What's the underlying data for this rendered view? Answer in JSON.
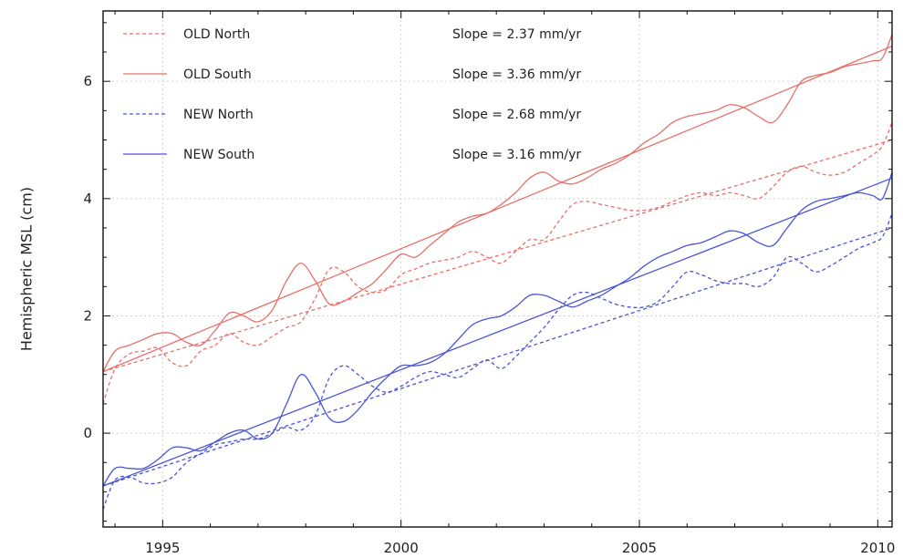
{
  "chart_data": {
    "type": "line",
    "title": "",
    "xlabel": "",
    "ylabel": "Hemispheric MSL (cm)",
    "xlim": [
      1993.75,
      2010.3
    ],
    "ylim": [
      -1.6,
      7.2
    ],
    "xticks": [
      1995,
      2000,
      2005,
      2010
    ],
    "yticks": [
      0,
      2,
      4,
      6
    ],
    "grid": true,
    "legend_position": "top-left",
    "series": [
      {
        "name": "OLD North",
        "color": "#e8706a",
        "dash": true,
        "slope_label": "Slope = 2.37 mm/yr",
        "trend": [
          [
            1993.75,
            1.05
          ],
          [
            2010.3,
            5.0
          ]
        ],
        "x": [
          1993.75,
          1994.0,
          1994.3,
          1994.6,
          1994.9,
          1995.2,
          1995.5,
          1995.8,
          1996.1,
          1996.4,
          1996.7,
          1997.0,
          1997.3,
          1997.6,
          1997.9,
          1998.2,
          1998.5,
          1998.8,
          1999.1,
          1999.4,
          1999.7,
          2000.0,
          2000.3,
          2000.6,
          2000.9,
          2001.2,
          2001.5,
          2001.8,
          2002.1,
          2002.4,
          2002.7,
          2003.0,
          2003.3,
          2003.6,
          2003.9,
          2004.2,
          2004.5,
          2004.8,
          2005.1,
          2005.4,
          2005.7,
          2006.0,
          2006.3,
          2006.6,
          2006.9,
          2007.2,
          2007.5,
          2007.8,
          2008.1,
          2008.4,
          2008.7,
          2009.0,
          2009.3,
          2009.6,
          2009.9,
          2010.1,
          2010.3
        ],
        "values": [
          0.5,
          1.1,
          1.35,
          1.4,
          1.45,
          1.2,
          1.15,
          1.4,
          1.5,
          1.7,
          1.55,
          1.5,
          1.65,
          1.8,
          1.9,
          2.3,
          2.8,
          2.75,
          2.5,
          2.4,
          2.45,
          2.7,
          2.8,
          2.9,
          2.95,
          3.0,
          3.1,
          3.0,
          2.9,
          3.1,
          3.3,
          3.3,
          3.6,
          3.9,
          3.95,
          3.9,
          3.85,
          3.8,
          3.8,
          3.85,
          3.95,
          4.05,
          4.1,
          4.05,
          4.1,
          4.05,
          4.0,
          4.2,
          4.45,
          4.55,
          4.45,
          4.4,
          4.45,
          4.6,
          4.75,
          4.9,
          5.3
        ]
      },
      {
        "name": "OLD South",
        "color": "#e8706a",
        "dash": false,
        "slope_label": "Slope = 3.36 mm/yr",
        "trend": [
          [
            1993.75,
            1.05
          ],
          [
            2010.3,
            6.6
          ]
        ],
        "x": [
          1993.75,
          1994.0,
          1994.3,
          1994.6,
          1994.9,
          1995.2,
          1995.5,
          1995.8,
          1996.1,
          1996.4,
          1996.7,
          1997.0,
          1997.3,
          1997.6,
          1997.9,
          1998.2,
          1998.5,
          1998.8,
          1999.1,
          1999.4,
          1999.7,
          2000.0,
          2000.3,
          2000.6,
          2000.9,
          2001.2,
          2001.5,
          2001.8,
          2002.1,
          2002.4,
          2002.7,
          2003.0,
          2003.3,
          2003.6,
          2003.9,
          2004.2,
          2004.5,
          2004.8,
          2005.1,
          2005.4,
          2005.7,
          2006.0,
          2006.3,
          2006.6,
          2006.9,
          2007.2,
          2007.5,
          2007.8,
          2008.1,
          2008.4,
          2008.7,
          2009.0,
          2009.3,
          2009.6,
          2009.9,
          2010.1,
          2010.3
        ],
        "values": [
          1.05,
          1.4,
          1.5,
          1.6,
          1.7,
          1.7,
          1.55,
          1.5,
          1.75,
          2.05,
          2.0,
          1.9,
          2.1,
          2.6,
          2.9,
          2.6,
          2.2,
          2.25,
          2.4,
          2.55,
          2.8,
          3.05,
          3.0,
          3.2,
          3.4,
          3.6,
          3.7,
          3.75,
          3.9,
          4.1,
          4.35,
          4.45,
          4.3,
          4.25,
          4.35,
          4.5,
          4.6,
          4.75,
          4.95,
          5.1,
          5.3,
          5.4,
          5.45,
          5.5,
          5.6,
          5.55,
          5.4,
          5.3,
          5.6,
          6.0,
          6.1,
          6.15,
          6.25,
          6.3,
          6.35,
          6.4,
          6.8
        ]
      },
      {
        "name": "NEW North",
        "color": "#4a55d6",
        "dash": true,
        "slope_label": "Slope = 2.68 mm/yr",
        "trend": [
          [
            1993.75,
            -0.9
          ],
          [
            2010.3,
            3.5
          ]
        ],
        "x": [
          1993.75,
          1994.0,
          1994.3,
          1994.6,
          1994.9,
          1995.2,
          1995.5,
          1995.8,
          1996.1,
          1996.4,
          1996.7,
          1997.0,
          1997.3,
          1997.6,
          1997.9,
          1998.2,
          1998.5,
          1998.8,
          1999.1,
          1999.4,
          1999.7,
          2000.0,
          2000.3,
          2000.6,
          2000.9,
          2001.2,
          2001.5,
          2001.8,
          2002.1,
          2002.4,
          2002.7,
          2003.0,
          2003.3,
          2003.6,
          2003.9,
          2004.2,
          2004.5,
          2004.8,
          2005.1,
          2005.4,
          2005.7,
          2006.0,
          2006.3,
          2006.6,
          2006.9,
          2007.2,
          2007.5,
          2007.8,
          2008.1,
          2008.4,
          2008.7,
          2009.0,
          2009.3,
          2009.6,
          2009.9,
          2010.1,
          2010.3
        ],
        "values": [
          -1.3,
          -0.8,
          -0.75,
          -0.85,
          -0.85,
          -0.75,
          -0.5,
          -0.35,
          -0.2,
          -0.15,
          -0.1,
          -0.1,
          0.0,
          0.1,
          0.05,
          0.3,
          0.95,
          1.15,
          1.0,
          0.8,
          0.7,
          0.8,
          0.95,
          1.05,
          1.0,
          0.95,
          1.1,
          1.25,
          1.1,
          1.3,
          1.55,
          1.8,
          2.1,
          2.35,
          2.4,
          2.3,
          2.2,
          2.15,
          2.15,
          2.25,
          2.5,
          2.75,
          2.7,
          2.6,
          2.55,
          2.55,
          2.5,
          2.65,
          3.0,
          2.9,
          2.75,
          2.85,
          3.0,
          3.15,
          3.25,
          3.35,
          3.75
        ]
      },
      {
        "name": "NEW South",
        "color": "#4a55d6",
        "dash": false,
        "slope_label": "Slope = 3.16 mm/yr",
        "trend": [
          [
            1993.75,
            -0.9
          ],
          [
            2010.3,
            4.35
          ]
        ],
        "x": [
          1993.75,
          1994.0,
          1994.3,
          1994.6,
          1994.9,
          1995.2,
          1995.5,
          1995.8,
          1996.1,
          1996.4,
          1996.7,
          1997.0,
          1997.3,
          1997.6,
          1997.9,
          1998.2,
          1998.5,
          1998.8,
          1999.1,
          1999.4,
          1999.7,
          2000.0,
          2000.3,
          2000.6,
          2000.9,
          2001.2,
          2001.5,
          2001.8,
          2002.1,
          2002.4,
          2002.7,
          2003.0,
          2003.3,
          2003.6,
          2003.9,
          2004.2,
          2004.5,
          2004.8,
          2005.1,
          2005.4,
          2005.7,
          2006.0,
          2006.3,
          2006.6,
          2006.9,
          2007.2,
          2007.5,
          2007.8,
          2008.1,
          2008.4,
          2008.7,
          2009.0,
          2009.3,
          2009.6,
          2009.9,
          2010.1,
          2010.3
        ],
        "values": [
          -0.9,
          -0.6,
          -0.6,
          -0.6,
          -0.45,
          -0.25,
          -0.25,
          -0.3,
          -0.15,
          0.0,
          0.05,
          -0.1,
          0.0,
          0.5,
          1.0,
          0.7,
          0.25,
          0.2,
          0.4,
          0.7,
          0.95,
          1.15,
          1.15,
          1.2,
          1.35,
          1.6,
          1.85,
          1.95,
          2.0,
          2.15,
          2.35,
          2.35,
          2.25,
          2.15,
          2.25,
          2.35,
          2.5,
          2.65,
          2.85,
          3.0,
          3.1,
          3.2,
          3.25,
          3.35,
          3.45,
          3.4,
          3.25,
          3.2,
          3.5,
          3.8,
          3.95,
          4.0,
          4.05,
          4.1,
          4.05,
          4.0,
          4.45
        ]
      }
    ]
  }
}
